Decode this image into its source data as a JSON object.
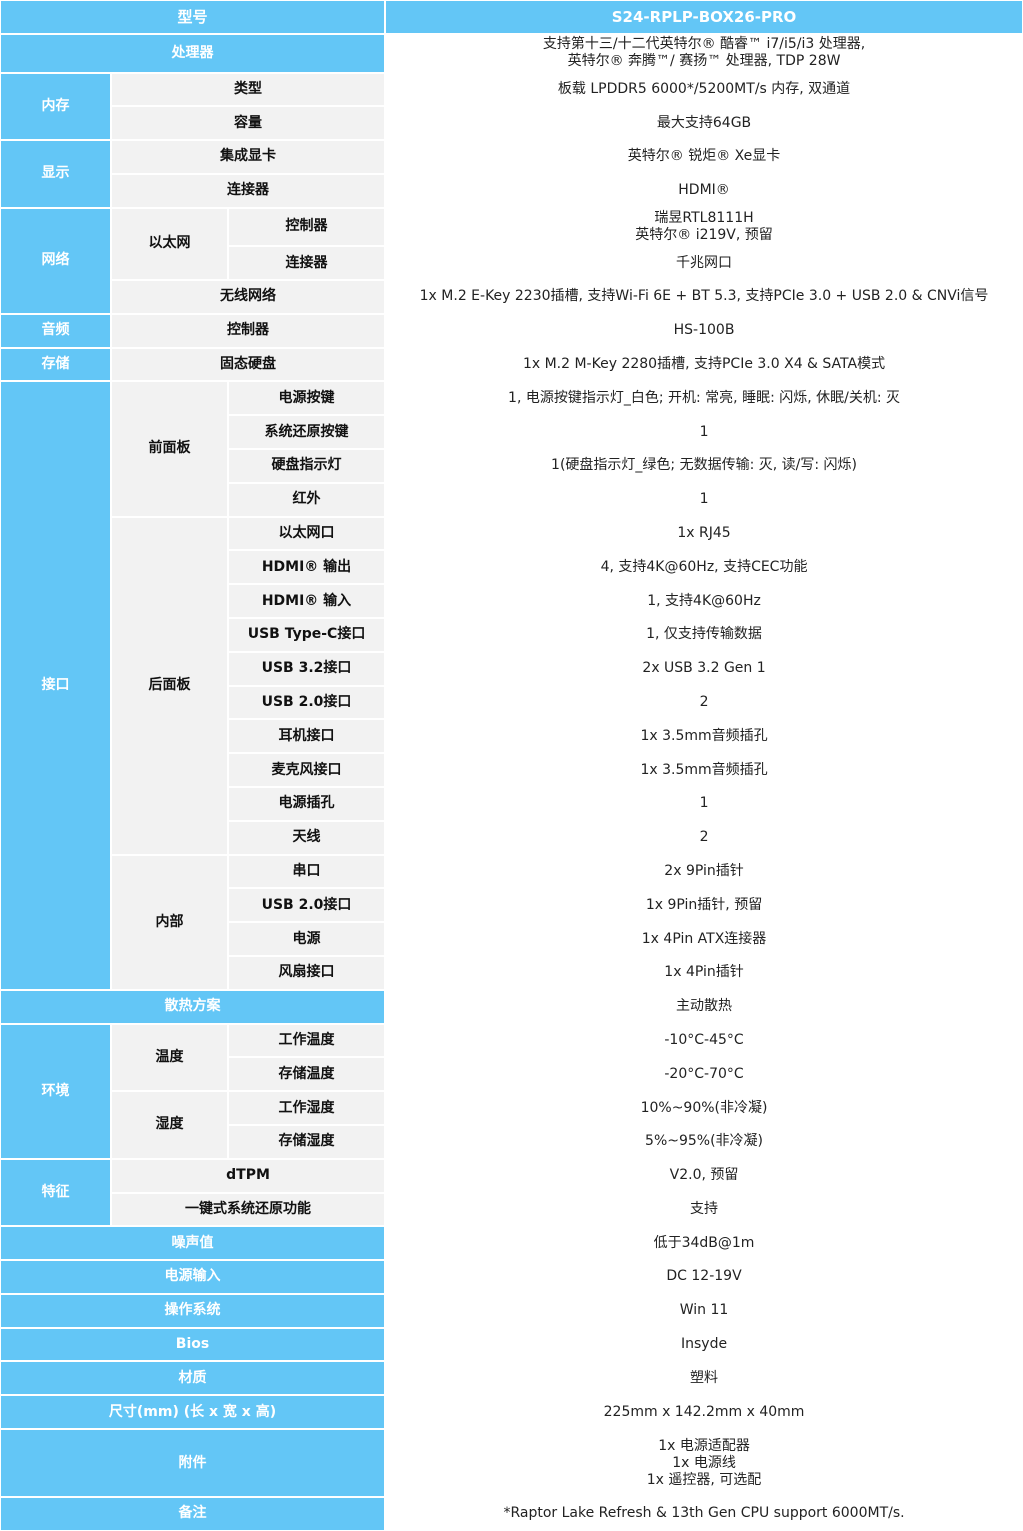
{
  "header": {
    "label": "型号",
    "value": "S24-RPLP-BOX26-PRO"
  },
  "sections": [
    {
      "label": "处理器",
      "value": [
        "支持第十三/十二代英特尔® 酷睿™ i7/i5/i3 处理器,",
        "英特尔® 奔腾™/ 赛扬™ 处理器, TDP 28W"
      ]
    },
    {
      "label": "内存",
      "items": [
        {
          "label": "类型",
          "value": "板载 LPDDR5 6000*/5200MT/s 内存, 双通道"
        },
        {
          "label": "容量",
          "value": "最大支持64GB"
        }
      ]
    },
    {
      "label": "显示",
      "items": [
        {
          "label": "集成显卡",
          "value": "英特尔® 锐炬® Xe显卡"
        },
        {
          "label": "连接器",
          "value": "HDMI®"
        }
      ]
    },
    {
      "label": "网络",
      "items": [
        {
          "label": "以太网",
          "items": [
            {
              "label": "控制器",
              "value": [
                "瑞昱RTL8111H",
                "英特尔® i219V, 预留"
              ]
            },
            {
              "label": "连接器",
              "value": "千兆网口"
            }
          ]
        },
        {
          "label": "无线网络",
          "value": "1x M.2 E-Key 2230插槽, 支持Wi-Fi 6E + BT 5.3, 支持PCIe 3.0 + USB 2.0 & CNVi信号"
        }
      ]
    },
    {
      "label": "音频",
      "items": [
        {
          "label": "控制器",
          "value": "HS-100B"
        }
      ]
    },
    {
      "label": "存储",
      "items": [
        {
          "label": "固态硬盘",
          "value": "1x M.2 M-Key 2280插槽, 支持PCIe 3.0 X4 & SATA模式"
        }
      ]
    },
    {
      "label": "接口",
      "items": [
        {
          "label": "前面板",
          "items": [
            {
              "label": "电源按键",
              "value": "1, 电源按键指示灯_白色; 开机: 常亮, 睡眠: 闪烁, 休眠/关机: 灭"
            },
            {
              "label": "系统还原按键",
              "value": "1"
            },
            {
              "label": "硬盘指示灯",
              "value": "1(硬盘指示灯_绿色; 无数据传输: 灭, 读/写: 闪烁)"
            },
            {
              "label": "红外",
              "value": "1"
            }
          ]
        },
        {
          "label": "后面板",
          "items": [
            {
              "label": "以太网口",
              "value": "1x RJ45"
            },
            {
              "label": "HDMI® 输出",
              "value": "4, 支持4K@60Hz, 支持CEC功能"
            },
            {
              "label": "HDMI® 输入",
              "value": "1, 支持4K@60Hz"
            },
            {
              "label": "USB Type-C接口",
              "value": "1, 仅支持传输数据"
            },
            {
              "label": "USB 3.2接口",
              "value": "2x USB 3.2 Gen 1"
            },
            {
              "label": "USB 2.0接口",
              "value": "2"
            },
            {
              "label": "耳机接口",
              "value": "1x 3.5mm音频插孔"
            },
            {
              "label": "麦克风接口",
              "value": "1x 3.5mm音频插孔"
            },
            {
              "label": "电源插孔",
              "value": "1"
            },
            {
              "label": "天线",
              "value": "2"
            }
          ]
        },
        {
          "label": "内部",
          "items": [
            {
              "label": "串口",
              "value": "2x 9Pin插针"
            },
            {
              "label": "USB 2.0接口",
              "value": "1x 9Pin插针, 预留"
            },
            {
              "label": "电源",
              "value": "1x 4Pin ATX连接器"
            },
            {
              "label": "风扇接口",
              "value": "1x 4Pin插针"
            }
          ]
        }
      ]
    },
    {
      "label": "散热方案",
      "value": "主动散热"
    },
    {
      "label": "环境",
      "items": [
        {
          "label": "温度",
          "items": [
            {
              "label": "工作温度",
              "value": "-10°C-45°C"
            },
            {
              "label": "存储温度",
              "value": "-20°C-70°C"
            }
          ]
        },
        {
          "label": "湿度",
          "items": [
            {
              "label": "工作湿度",
              "value": "10%~90%(非冷凝)"
            },
            {
              "label": "存储湿度",
              "value": "5%~95%(非冷凝)"
            }
          ]
        }
      ]
    },
    {
      "label": "特征",
      "items": [
        {
          "label": "dTPM",
          "value": "V2.0, 预留"
        },
        {
          "label": "一键式系统还原功能",
          "value": "支持"
        }
      ]
    },
    {
      "label": "噪声值",
      "value": "低于34dB@1m"
    },
    {
      "label": "电源输入",
      "value": "DC 12-19V"
    },
    {
      "label": "操作系统",
      "value": "Win 11"
    },
    {
      "label": "Bios",
      "value": "Insyde"
    },
    {
      "label": "材质",
      "value": "塑料"
    },
    {
      "label": "尺寸(mm) (长 x 宽 x 高)",
      "value": "225mm x 142.2mm x 40mm"
    },
    {
      "label": "附件",
      "value": [
        "1x 电源适配器",
        "1x 电源线",
        "1x 遥控器, 可选配"
      ]
    },
    {
      "label": "备注",
      "value": "*Raptor Lake Refresh & 13th Gen CPU support 6000MT/s."
    }
  ]
}
